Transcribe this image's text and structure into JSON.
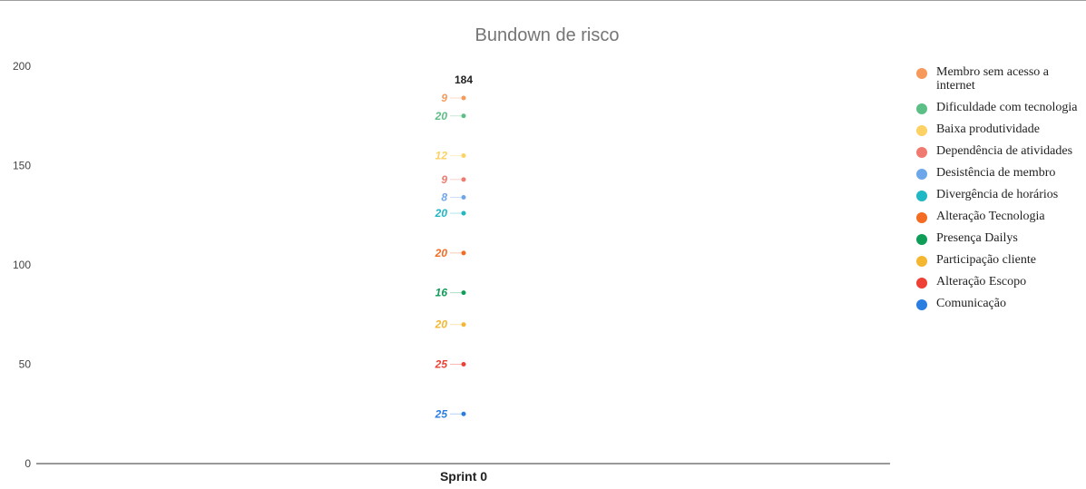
{
  "chart_data": {
    "type": "line",
    "title": "Bundown de risco",
    "categories": [
      "Sprint 0"
    ],
    "ylim": [
      0,
      200
    ],
    "yticks": [
      0,
      50,
      100,
      150,
      200
    ],
    "stacked": true,
    "grid": false,
    "legend_position": "right",
    "total_label": "184",
    "series": [
      {
        "name": "Comunicação",
        "values": [
          25
        ],
        "color": "#2a7de1"
      },
      {
        "name": "Alteração Escopo",
        "values": [
          25
        ],
        "color": "#ee4035"
      },
      {
        "name": "Participação cliente",
        "values": [
          20
        ],
        "color": "#f5b731"
      },
      {
        "name": "Presença Dailys",
        "values": [
          16
        ],
        "color": "#0f9d58"
      },
      {
        "name": "Alteração Tecnologia",
        "values": [
          20
        ],
        "color": "#f46c23"
      },
      {
        "name": "Divergência de horários",
        "values": [
          20
        ],
        "color": "#1fb8c4"
      },
      {
        "name": "Desistência de membro",
        "values": [
          8
        ],
        "color": "#6ea6ea"
      },
      {
        "name": "Dependência de atividades",
        "values": [
          9
        ],
        "color": "#f07a70"
      },
      {
        "name": "Baixa produtividade",
        "values": [
          12
        ],
        "color": "#fdd163"
      },
      {
        "name": "Dificuldade com tecnologia",
        "values": [
          20
        ],
        "color": "#5cbf85"
      },
      {
        "name": "Membro sem acesso a internet",
        "values": [
          9
        ],
        "color": "#f7995a"
      }
    ]
  }
}
